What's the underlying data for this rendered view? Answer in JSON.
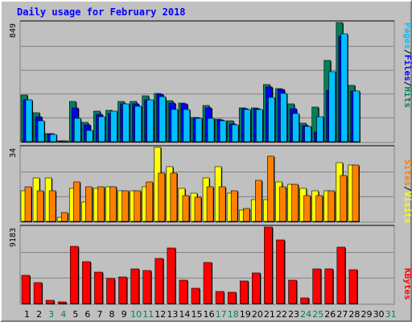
{
  "title": "Daily usage for February 2018",
  "colors": {
    "hits": "#00805c",
    "files": "#0000ff",
    "pages": "#00c0ff",
    "visits": "#ffff00",
    "sites": "#ff8000",
    "kbytes": "#ff0000",
    "weekday_label": "#000000",
    "weekend_label": "#00805c",
    "panel_bg": "#c0c0c0",
    "grid": "#808080"
  },
  "y_labels": {
    "top": [
      "Pages",
      "/",
      "Files",
      "/",
      "Hits"
    ],
    "top_colors": [
      "#00c0ff",
      "#000000",
      "#0000ff",
      "#000000",
      "#00805c"
    ],
    "mid": [
      "Sites",
      "/",
      "Visits"
    ],
    "mid_colors": [
      "#ff8000",
      "#000000",
      "#ffff00"
    ],
    "bottom": [
      "KBytes"
    ],
    "bottom_colors": [
      "#ff0000"
    ]
  },
  "chart_data": [
    {
      "type": "bar",
      "panel": "requests",
      "ymax_label": "849",
      "ylim": [
        0,
        849
      ],
      "categories": [
        "1",
        "2",
        "3",
        "4",
        "5",
        "6",
        "7",
        "8",
        "9",
        "10",
        "11",
        "12",
        "13",
        "14",
        "15",
        "16",
        "17",
        "18",
        "19",
        "20",
        "21",
        "22",
        "23",
        "24",
        "25",
        "26",
        "27",
        "28",
        "29",
        "30",
        "31"
      ],
      "series": [
        {
          "name": "Hits",
          "values": [
            330,
            205,
            58,
            8,
            285,
            140,
            218,
            225,
            285,
            285,
            325,
            345,
            295,
            275,
            172,
            258,
            158,
            150,
            242,
            242,
            405,
            380,
            270,
            130,
            245,
            580,
            849,
            400,
            null,
            null,
            null
          ]
        },
        {
          "name": "Files",
          "values": [
            300,
            180,
            55,
            6,
            240,
            120,
            195,
            198,
            270,
            270,
            300,
            340,
            275,
            270,
            170,
            240,
            155,
            125,
            235,
            235,
            390,
            375,
            235,
            115,
            70,
            365,
            750,
            360,
            null,
            null,
            null
          ]
        },
        {
          "name": "Pages",
          "values": [
            300,
            150,
            50,
            5,
            165,
            78,
            180,
            220,
            270,
            250,
            300,
            320,
            230,
            230,
            165,
            165,
            150,
            118,
            230,
            230,
            318,
            345,
            200,
            108,
            175,
            500,
            770,
            360,
            null,
            null,
            null
          ]
        }
      ]
    },
    {
      "type": "bar",
      "panel": "visitors",
      "ymax_label": "34",
      "ylim": [
        0,
        34
      ],
      "categories": [
        "1",
        "2",
        "3",
        "4",
        "5",
        "6",
        "7",
        "8",
        "9",
        "10",
        "11",
        "12",
        "13",
        "14",
        "15",
        "16",
        "17",
        "18",
        "19",
        "20",
        "21",
        "22",
        "23",
        "24",
        "25",
        "26",
        "27",
        "28",
        "29",
        "30",
        "31"
      ],
      "series": [
        {
          "name": "Visits",
          "values": [
            14,
            20,
            20,
            2,
            15,
            9,
            15,
            16,
            14,
            14,
            16,
            34,
            25,
            15,
            13,
            20,
            25,
            13,
            5,
            10,
            10,
            18,
            17,
            15,
            14,
            14,
            27,
            26,
            null,
            null,
            null
          ]
        },
        {
          "name": "Sites",
          "values": [
            16,
            14,
            14,
            4,
            18,
            16,
            16,
            16,
            14,
            14,
            18,
            22,
            22,
            12,
            11,
            16,
            16,
            14,
            6,
            19,
            30,
            16,
            17,
            12,
            12,
            14,
            21,
            26,
            null,
            null,
            null
          ]
        }
      ]
    },
    {
      "type": "bar",
      "panel": "kbytes",
      "ymax_label": "9183",
      "ylim": [
        0,
        9183
      ],
      "categories": [
        "1",
        "2",
        "3",
        "4",
        "5",
        "6",
        "7",
        "8",
        "9",
        "10",
        "11",
        "12",
        "13",
        "14",
        "15",
        "16",
        "17",
        "18",
        "19",
        "20",
        "21",
        "22",
        "23",
        "24",
        "25",
        "26",
        "27",
        "28",
        "29",
        "30",
        "31"
      ],
      "series": [
        {
          "name": "KBytes",
          "values": [
            3400,
            2500,
            350,
            200,
            6900,
            5000,
            3800,
            2950,
            3200,
            4200,
            4000,
            5400,
            6700,
            2800,
            1800,
            4900,
            1450,
            1400,
            2700,
            3700,
            9183,
            7600,
            2800,
            700,
            4200,
            4200,
            6800,
            4100,
            null,
            null,
            null
          ]
        }
      ]
    }
  ],
  "x_labels": [
    "1",
    "2",
    "3",
    "4",
    "5",
    "6",
    "7",
    "8",
    "9",
    "10",
    "11",
    "12",
    "13",
    "14",
    "15",
    "16",
    "17",
    "18",
    "19",
    "20",
    "21",
    "22",
    "23",
    "24",
    "25",
    "26",
    "27",
    "28",
    "29",
    "30",
    "31"
  ],
  "weekend_days": [
    3,
    4,
    10,
    11,
    17,
    18,
    24,
    25,
    31
  ]
}
